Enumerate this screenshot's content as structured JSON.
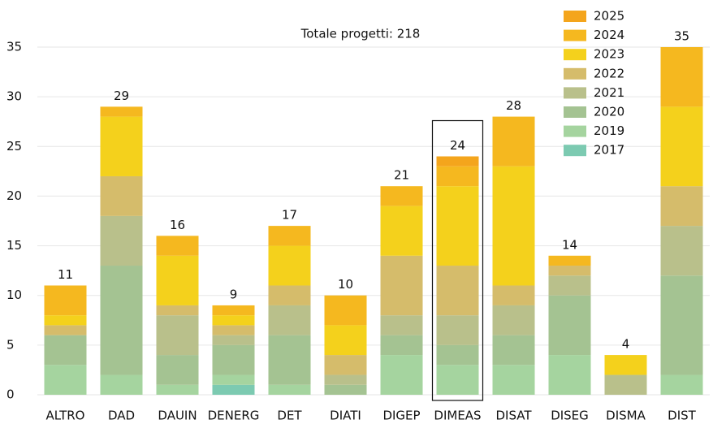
{
  "chart_data": {
    "type": "stacked_bar",
    "title": "Totale progetti: 218",
    "categories": [
      "ALTRO",
      "DAD",
      "DAUIN",
      "DENERG",
      "DET",
      "DIATI",
      "DIGEP",
      "DIMEAS",
      "DISAT",
      "DISEG",
      "DISMA",
      "DIST"
    ],
    "series": [
      {
        "name": "2025",
        "color": "#f4a51c",
        "values": [
          0,
          0,
          0,
          0,
          0,
          0,
          0,
          1,
          0,
          0,
          0,
          0
        ]
      },
      {
        "name": "2024",
        "color": "#f5b81f",
        "values": [
          3,
          1,
          2,
          1,
          2,
          3,
          2,
          2,
          5,
          1,
          0,
          6
        ]
      },
      {
        "name": "2023",
        "color": "#f4d11c",
        "values": [
          1,
          6,
          5,
          1,
          4,
          3,
          5,
          8,
          12,
          0,
          2,
          8
        ]
      },
      {
        "name": "2022",
        "color": "#d5bc6b",
        "values": [
          1,
          4,
          1,
          1,
          2,
          2,
          6,
          5,
          2,
          1,
          0,
          4
        ]
      },
      {
        "name": "2021",
        "color": "#b9c08b",
        "values": [
          0,
          5,
          4,
          1,
          3,
          1,
          2,
          3,
          3,
          2,
          2,
          5
        ]
      },
      {
        "name": "2020",
        "color": "#a4c392",
        "values": [
          3,
          11,
          3,
          3,
          5,
          1,
          2,
          2,
          3,
          6,
          0,
          10
        ]
      },
      {
        "name": "2019",
        "color": "#a5d49f",
        "values": [
          3,
          2,
          1,
          1,
          1,
          0,
          4,
          3,
          3,
          4,
          0,
          2
        ]
      },
      {
        "name": "2017",
        "color": "#7ccab1",
        "values": [
          0,
          0,
          0,
          1,
          0,
          0,
          0,
          0,
          0,
          0,
          0,
          0
        ]
      }
    ],
    "totals": [
      11,
      29,
      16,
      9,
      17,
      10,
      21,
      24,
      28,
      14,
      4,
      35
    ],
    "highlight": "DIMEAS",
    "ylim": [
      0,
      35
    ],
    "yticks": [
      0,
      5,
      10,
      15,
      20,
      25,
      30,
      35
    ],
    "grid": true
  }
}
